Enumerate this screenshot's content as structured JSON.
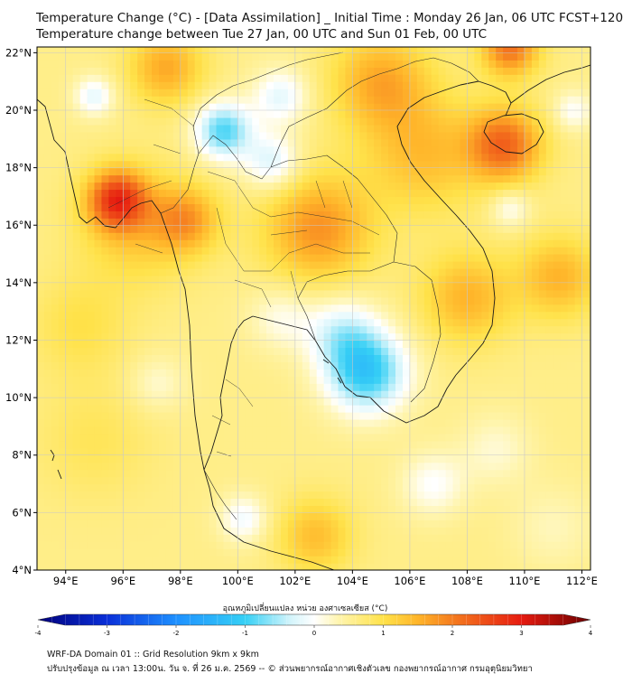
{
  "title": {
    "line1": "Temperature Change (°C) - [Data Assimilation] _ Initial Time : Monday 26 Jan, 06 UTC FCST+120",
    "line2": "Temperature change between Tue 27 Jan, 00 UTC and Sun 01 Feb, 00 UTC"
  },
  "map": {
    "lat_range": [
      4,
      22.2
    ],
    "lon_range": [
      93,
      112.3
    ],
    "lat_ticks": [
      {
        "value": 4,
        "label": "4°N"
      },
      {
        "value": 6,
        "label": "6°N"
      },
      {
        "value": 8,
        "label": "8°N"
      },
      {
        "value": 10,
        "label": "10°N"
      },
      {
        "value": 12,
        "label": "12°N"
      },
      {
        "value": 14,
        "label": "14°N"
      },
      {
        "value": 16,
        "label": "16°N"
      },
      {
        "value": 18,
        "label": "18°N"
      },
      {
        "value": 20,
        "label": "20°N"
      },
      {
        "value": 22,
        "label": "22°N"
      }
    ],
    "lon_ticks": [
      {
        "value": 94,
        "label": "94°E"
      },
      {
        "value": 96,
        "label": "96°E"
      },
      {
        "value": 98,
        "label": "98°E"
      },
      {
        "value": 100,
        "label": "100°E"
      },
      {
        "value": 102,
        "label": "102°E"
      },
      {
        "value": 104,
        "label": "104°E"
      },
      {
        "value": 106,
        "label": "106°E"
      },
      {
        "value": 108,
        "label": "108°E"
      },
      {
        "value": 110,
        "label": "110°E"
      },
      {
        "value": 112,
        "label": "112°E"
      }
    ],
    "base_value": 0.6,
    "anomalies": [
      {
        "lon": 95.8,
        "lat": 16.9,
        "value": 1.9,
        "spread": 0.7
      },
      {
        "lon": 96.5,
        "lat": 16.0,
        "value": 0.7,
        "spread": 1.4
      },
      {
        "lon": 98.2,
        "lat": 16.2,
        "value": 1.0,
        "spread": 0.8
      },
      {
        "lon": 102.8,
        "lat": 15.9,
        "value": 1.2,
        "spread": 1.3
      },
      {
        "lon": 106.5,
        "lat": 18.5,
        "value": 0.8,
        "spread": 1.4
      },
      {
        "lon": 109.3,
        "lat": 18.8,
        "value": 1.6,
        "spread": 0.9
      },
      {
        "lon": 105.0,
        "lat": 21.0,
        "value": 1.0,
        "spread": 1.2
      },
      {
        "lon": 109.5,
        "lat": 22.2,
        "value": 1.5,
        "spread": 0.7
      },
      {
        "lon": 97.5,
        "lat": 21.5,
        "value": 1.0,
        "spread": 0.9
      },
      {
        "lon": 108.0,
        "lat": 13.5,
        "value": 0.9,
        "spread": 1.1
      },
      {
        "lon": 111.2,
        "lat": 14.2,
        "value": 0.9,
        "spread": 1.0
      },
      {
        "lon": 94.5,
        "lat": 12.5,
        "value": 0.4,
        "spread": 1.2
      },
      {
        "lon": 95.0,
        "lat": 8.5,
        "value": 0.3,
        "spread": 1.4
      },
      {
        "lon": 102.7,
        "lat": 5.2,
        "value": 0.8,
        "spread": 0.9
      },
      {
        "lon": 104.5,
        "lat": 10.9,
        "value": -1.7,
        "spread": 1.0
      },
      {
        "lon": 103.6,
        "lat": 12.3,
        "value": -0.8,
        "spread": 0.9
      },
      {
        "lon": 99.5,
        "lat": 19.3,
        "value": -1.5,
        "spread": 0.7
      },
      {
        "lon": 101.2,
        "lat": 18.2,
        "value": -0.9,
        "spread": 0.7
      },
      {
        "lon": 101.5,
        "lat": 20.5,
        "value": -0.8,
        "spread": 0.7
      },
      {
        "lon": 101.5,
        "lat": 12.8,
        "value": -0.5,
        "spread": 0.8
      },
      {
        "lon": 100.2,
        "lat": 5.8,
        "value": -0.7,
        "spread": 0.6
      },
      {
        "lon": 106.8,
        "lat": 7.0,
        "value": -0.6,
        "spread": 0.8
      },
      {
        "lon": 109.0,
        "lat": 8.2,
        "value": -0.4,
        "spread": 0.9
      },
      {
        "lon": 97.2,
        "lat": 10.5,
        "value": -0.4,
        "spread": 0.7
      },
      {
        "lon": 95.0,
        "lat": 20.5,
        "value": -0.8,
        "spread": 0.5
      },
      {
        "lon": 109.5,
        "lat": 16.6,
        "value": -0.6,
        "spread": 0.5
      },
      {
        "lon": 111.7,
        "lat": 20.0,
        "value": -0.6,
        "spread": 0.5
      },
      {
        "lon": 111.0,
        "lat": 5.5,
        "value": -0.3,
        "spread": 1.0
      }
    ]
  },
  "colorbar": {
    "title": "อุณหภูมิเปลี่ยนแปลง หน่วย องศาเซลเซียส (°C)",
    "min": -4,
    "max": 4,
    "ticks": [
      {
        "value": -4,
        "label": "-4"
      },
      {
        "value": -3,
        "label": "-3"
      },
      {
        "value": -2,
        "label": "-2"
      },
      {
        "value": -1,
        "label": "-1"
      },
      {
        "value": 0,
        "label": "0"
      },
      {
        "value": 1,
        "label": "1"
      },
      {
        "value": 2,
        "label": "2"
      },
      {
        "value": 3,
        "label": "3"
      },
      {
        "value": 4,
        "label": "4"
      }
    ],
    "colors": [
      {
        "value": -4,
        "color": "#00007a"
      },
      {
        "value": -3,
        "color": "#0a2fd8"
      },
      {
        "value": -2,
        "color": "#1e90ff"
      },
      {
        "value": -1,
        "color": "#36d0f5"
      },
      {
        "value": -0.35,
        "color": "#d2f4fb"
      },
      {
        "value": 0,
        "color": "#ffffff"
      },
      {
        "value": 0.35,
        "color": "#fff5b0"
      },
      {
        "value": 1,
        "color": "#ffe24a"
      },
      {
        "value": 1.5,
        "color": "#ffb52a"
      },
      {
        "value": 2,
        "color": "#f57c1f"
      },
      {
        "value": 3,
        "color": "#e61b10"
      },
      {
        "value": 4,
        "color": "#6b0000"
      }
    ]
  },
  "footer": {
    "line1": "WRF-DA Domain 01 :: Grid Resolution 9km x 9km",
    "line2": "ปรับปรุงข้อมูล ณ เวลา 13:00น. วัน จ. ที่ 26 ม.ค. 2569 -- © ส่วนพยากรณ์อากาศเชิงตัวเลข กองพยากรณ์อากาศ กรมอุตุนิยมวิทยา"
  }
}
